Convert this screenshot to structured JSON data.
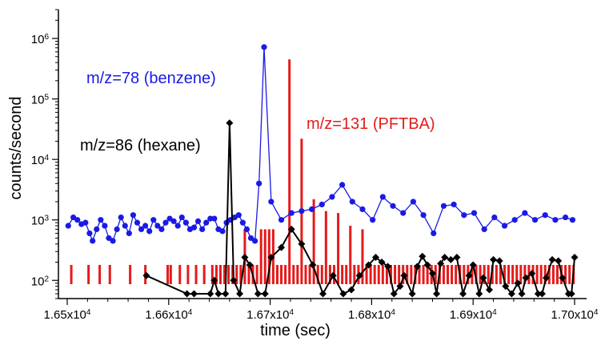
{
  "chart_data": {
    "type": "line",
    "xlabel": "time (sec)",
    "ylabel": "counts/second",
    "xlim": [
      16500,
      17000
    ],
    "ylim": [
      50,
      3000000
    ],
    "yscale": "log",
    "x_ticks": [
      16500,
      16600,
      16700,
      16800,
      16900,
      17000
    ],
    "x_tick_labels": [
      {
        "mant": "1.65x10",
        "exp": "4"
      },
      {
        "mant": "1.66x10",
        "exp": "4"
      },
      {
        "mant": "1.67x10",
        "exp": "4"
      },
      {
        "mant": "1.68x10",
        "exp": "4"
      },
      {
        "mant": "1.69x10",
        "exp": "4"
      },
      {
        "mant": "1.70x10",
        "exp": "4"
      }
    ],
    "y_ticks": [
      100,
      1000,
      10000,
      100000,
      1000000
    ],
    "y_tick_labels": [
      {
        "mant": "10",
        "exp": "2"
      },
      {
        "mant": "10",
        "exp": "3"
      },
      {
        "mant": "10",
        "exp": "4"
      },
      {
        "mant": "10",
        "exp": "5"
      },
      {
        "mant": "10",
        "exp": "6"
      }
    ],
    "grid": false,
    "series": [
      {
        "name": "m/z=78 (benzene)",
        "type": "line",
        "color": "#1a1ae6",
        "marker": "circle",
        "x": [
          16501,
          16506,
          16510,
          16514,
          16518,
          16522,
          16525,
          16529,
          16533,
          16537,
          16541,
          16545,
          16549,
          16553,
          16557,
          16561,
          16565,
          16569,
          16573,
          16577,
          16581,
          16585,
          16589,
          16593,
          16597,
          16601,
          16605,
          16609,
          16613,
          16617,
          16621,
          16625,
          16629,
          16633,
          16637,
          16641,
          16645,
          16649,
          16653,
          16657,
          16661,
          16665,
          16669,
          16673,
          16677,
          16681,
          16685,
          16689,
          16694,
          16701,
          16711,
          16721,
          16731,
          16741,
          16751,
          16761,
          16771,
          16781,
          16791,
          16801,
          16811,
          16821,
          16831,
          16841,
          16851,
          16861,
          16871,
          16881,
          16891,
          16901,
          16911,
          16921,
          16931,
          16941,
          16951,
          16961,
          16971,
          16981,
          16991,
          16998
        ],
        "y": [
          800,
          1100,
          1000,
          850,
          900,
          600,
          450,
          700,
          1000,
          800,
          500,
          450,
          700,
          1100,
          800,
          600,
          1200,
          900,
          700,
          800,
          650,
          1000,
          800,
          700,
          900,
          1050,
          950,
          800,
          1100,
          900,
          700,
          750,
          950,
          700,
          900,
          1050,
          1050,
          700,
          650,
          900,
          1000,
          1100,
          1200,
          900,
          700,
          500,
          450,
          4000,
          720000,
          2000,
          1000,
          1300,
          1400,
          1500,
          1800,
          2400,
          3800,
          2000,
          1500,
          1000,
          2400,
          1700,
          1300,
          2000,
          1200,
          600,
          1700,
          1800,
          1200,
          1300,
          700,
          1100,
          800,
          1000,
          1300,
          1000,
          1200,
          1000,
          1100,
          1000
        ]
      },
      {
        "name": "m/z=86 (hexane)",
        "type": "line",
        "color": "#000000",
        "marker": "diamond",
        "x": [
          16578,
          16618,
          16625,
          16641,
          16645,
          16649,
          16656,
          16660,
          16664,
          16670,
          16675,
          16680,
          16688,
          16695,
          16701,
          16711,
          16721,
          16731,
          16742,
          16752,
          16762,
          16772,
          16780,
          16788,
          16797,
          16804,
          16810,
          16816,
          16822,
          16828,
          16832,
          16840,
          16845,
          16850,
          16855,
          16860,
          16864,
          16868,
          16872,
          16878,
          16884,
          16890,
          16896,
          16900,
          16906,
          16910,
          16916,
          16920,
          16926,
          16932,
          16938,
          16944,
          16948,
          16952,
          16958,
          16964,
          16968,
          16972,
          16978,
          16984,
          16988,
          16994,
          16997,
          17000
        ],
        "y": [
          120,
          60,
          60,
          60,
          100,
          60,
          60,
          40000,
          100,
          60,
          240,
          180,
          60,
          60,
          240,
          350,
          700,
          400,
          180,
          60,
          120,
          60,
          70,
          120,
          180,
          240,
          200,
          170,
          60,
          80,
          120,
          60,
          170,
          250,
          180,
          130,
          60,
          190,
          240,
          220,
          240,
          60,
          120,
          180,
          60,
          110,
          70,
          220,
          210,
          80,
          60,
          90,
          60,
          110,
          130,
          60,
          60,
          110,
          220,
          210,
          110,
          60,
          60,
          240
        ]
      },
      {
        "name": "m/z=131 (PFTBA)",
        "type": "bar",
        "color": "#e61a1a",
        "x": [
          16504,
          16508,
          16511,
          16515,
          16518,
          16521,
          16524,
          16527,
          16532,
          16536,
          16539,
          16542,
          16546,
          16549,
          16553,
          16557,
          16562,
          16566,
          16569,
          16573,
          16577,
          16581,
          16585,
          16589,
          16595,
          16599,
          16602,
          16606,
          16611,
          16615,
          16619,
          16623,
          16627,
          16631,
          16635,
          16639,
          16643,
          16647,
          16651,
          16655,
          16659,
          16663,
          16667,
          16671,
          16675,
          16679,
          16683,
          16687,
          16691,
          16695,
          16699,
          16703,
          16707,
          16711,
          16715,
          16719,
          16723,
          16727,
          16731,
          16735,
          16739,
          16743,
          16747,
          16751,
          16755,
          16759,
          16763,
          16767,
          16771,
          16775,
          16779,
          16783,
          16787,
          16791,
          16795,
          16799,
          16803,
          16807,
          16811,
          16815,
          16819,
          16823,
          16827,
          16831,
          16835,
          16839,
          16843,
          16847,
          16851,
          16855,
          16859,
          16863,
          16867,
          16871,
          16875,
          16879,
          16883,
          16887,
          16891,
          16895,
          16899,
          16903,
          16907,
          16911,
          16915,
          16919,
          16923,
          16927,
          16931,
          16935,
          16939,
          16943,
          16947,
          16951,
          16955,
          16959,
          16963,
          16967,
          16971,
          16975,
          16979,
          16983,
          16987,
          16991,
          16995,
          16999
        ],
        "y": [
          180,
          60,
          60,
          60,
          60,
          180,
          60,
          60,
          180,
          60,
          60,
          180,
          60,
          60,
          60,
          60,
          180,
          60,
          60,
          60,
          180,
          60,
          60,
          60,
          60,
          180,
          180,
          60,
          180,
          60,
          180,
          60,
          180,
          60,
          180,
          60,
          180,
          180,
          180,
          180,
          180,
          180,
          180,
          180,
          700,
          180,
          180,
          180,
          700,
          700,
          700,
          700,
          180,
          180,
          180,
          450000,
          180,
          180,
          22000,
          180,
          180,
          2200,
          180,
          180,
          1400,
          180,
          180,
          1300,
          180,
          180,
          800,
          180,
          180,
          700,
          180,
          180,
          180,
          180,
          180,
          180,
          180,
          180,
          180,
          180,
          180,
          180,
          180,
          180,
          180,
          180,
          180,
          180,
          180,
          180,
          180,
          180,
          180,
          180,
          180,
          180,
          180,
          180,
          180,
          180,
          180,
          180,
          180,
          180,
          180,
          180,
          180,
          180,
          180,
          180,
          180,
          180,
          180,
          180,
          180,
          180,
          180,
          180,
          180,
          180,
          180,
          180
        ]
      }
    ],
    "annotations": [
      {
        "text": "m/z=78 (benzene)",
        "color": "#1a1ae6"
      },
      {
        "text": "m/z=86 (hexane)",
        "color": "#000000"
      },
      {
        "text": "m/z=131 (PFTBA)",
        "color": "#e61a1a"
      }
    ]
  }
}
